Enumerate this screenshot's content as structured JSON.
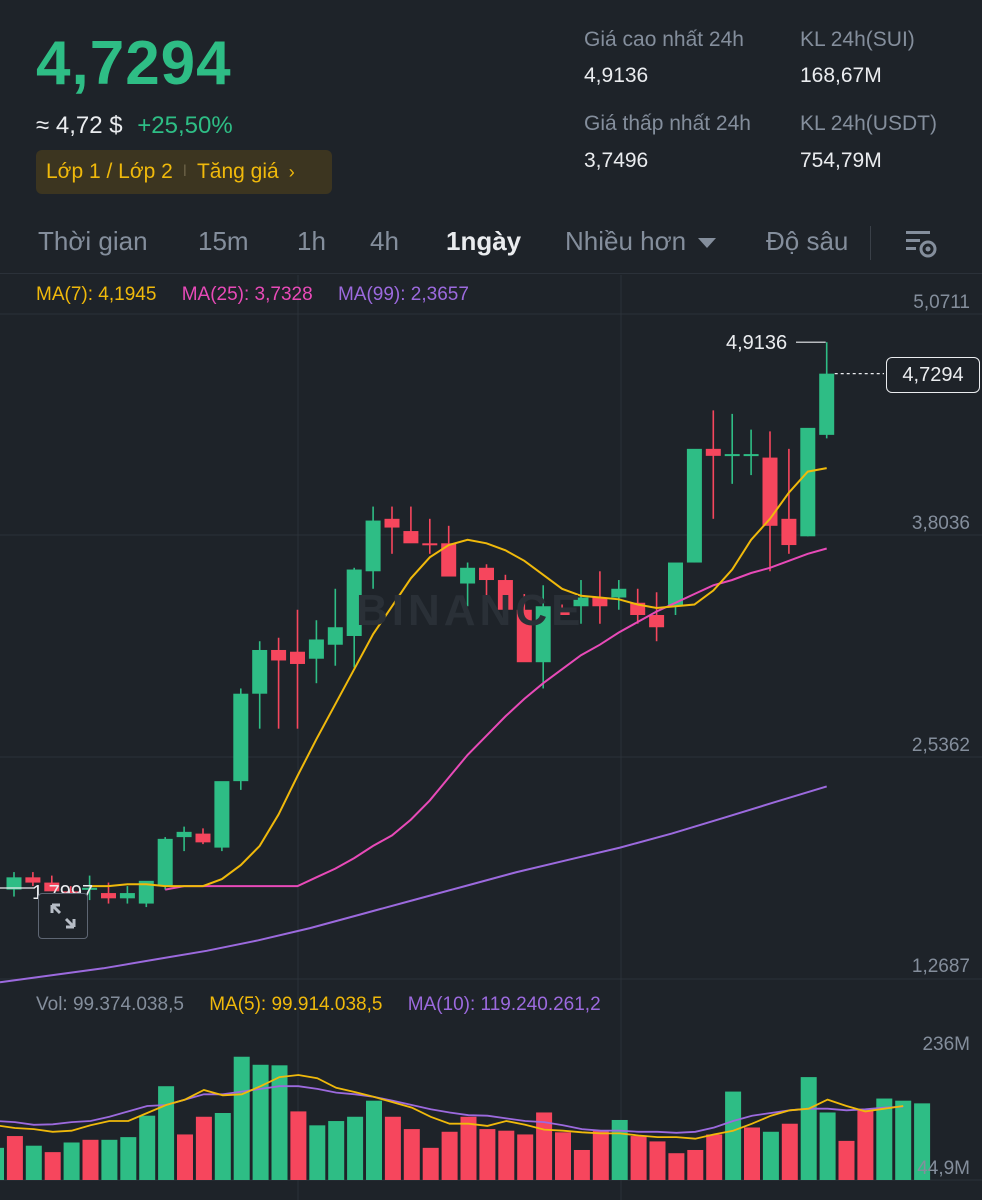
{
  "header": {
    "last_price": "4,7294",
    "usd_approx": "≈ 4,72 $",
    "change_pct": "+25,50%",
    "tag_layer": "Lớp 1 / Lớp 2",
    "tag_trend": "Tăng giá",
    "stats": {
      "high_label": "Giá cao nhất 24h",
      "high_value": "4,9136",
      "low_label": "Giá thấp nhất 24h",
      "low_value": "3,7496",
      "vol_base_label": "KL 24h(SUI)",
      "vol_base_value": "168,67M",
      "vol_quote_label": "KL 24h(USDT)",
      "vol_quote_value": "754,79M"
    }
  },
  "tabs": {
    "time": "Thời gian",
    "m15": "15m",
    "h1": "1h",
    "h4": "4h",
    "d1": "1ngày",
    "more": "Nhiều hơn",
    "depth": "Độ sâu"
  },
  "ma_legend": {
    "ma7": "MA(7): 4,1945",
    "ma25": "MA(25): 3,7328",
    "ma99": "MA(99): 2,3657"
  },
  "vol_legend": {
    "vol": "Vol: 99.374.038,5",
    "ma5": "MA(5): 99.914.038,5",
    "ma10": "MA(10): 119.240.261,2"
  },
  "price_axis": {
    "p1": "5,0711",
    "p2": "3,8036",
    "p3": "2,5362",
    "p4": "1,2687"
  },
  "volume_axis": {
    "v1": "236M",
    "v2": "44,9M"
  },
  "annotations": {
    "high_marker": "4,9136",
    "low_marker": "1,7997",
    "current_price_tag": "4,7294"
  },
  "watermark": "BINANCE",
  "colors": {
    "up": "#2ebd85",
    "down": "#f6465d",
    "ma7": "#f0b90b",
    "ma25": "#e84ab8",
    "ma99": "#9c6ade",
    "accent": "#f0b90b"
  },
  "chart_data": {
    "type": "candlestick",
    "interval": "1ngày",
    "price_axis_ticks": [
      5.0711,
      3.8036,
      2.5362,
      1.2687
    ],
    "volume_axis_ticks_M": [
      236,
      44.9
    ],
    "candles_ohlc": [
      [
        1.78,
        1.88,
        1.74,
        1.85
      ],
      [
        1.85,
        1.88,
        1.8,
        1.82
      ],
      [
        1.82,
        1.86,
        1.78,
        1.77
      ],
      [
        1.77,
        1.8,
        1.72,
        1.76
      ],
      [
        1.78,
        1.86,
        1.72,
        1.79
      ],
      [
        1.76,
        1.82,
        1.7,
        1.73
      ],
      [
        1.73,
        1.8,
        1.7,
        1.76
      ],
      [
        1.7,
        1.8,
        1.68,
        1.83
      ],
      [
        1.8,
        2.08,
        1.78,
        2.07
      ],
      [
        2.08,
        2.14,
        2.0,
        2.11
      ],
      [
        2.1,
        2.13,
        2.04,
        2.05
      ],
      [
        2.02,
        2.38,
        2.0,
        2.4
      ],
      [
        2.4,
        2.93,
        2.35,
        2.9
      ],
      [
        2.9,
        3.2,
        2.7,
        3.15
      ],
      [
        3.15,
        3.22,
        2.7,
        3.09
      ],
      [
        3.14,
        3.38,
        2.7,
        3.07
      ],
      [
        3.1,
        3.32,
        2.96,
        3.21
      ],
      [
        3.18,
        3.5,
        3.06,
        3.28
      ],
      [
        3.23,
        3.62,
        3.05,
        3.61
      ],
      [
        3.6,
        3.97,
        3.5,
        3.89
      ],
      [
        3.9,
        3.97,
        3.7,
        3.85
      ],
      [
        3.83,
        3.97,
        3.82,
        3.76
      ],
      [
        3.76,
        3.9,
        3.7,
        3.75
      ],
      [
        3.76,
        3.86,
        3.66,
        3.57
      ],
      [
        3.53,
        3.65,
        3.4,
        3.62
      ],
      [
        3.62,
        3.64,
        3.4,
        3.55
      ],
      [
        3.55,
        3.58,
        3.35,
        3.38
      ],
      [
        3.38,
        3.47,
        3.14,
        3.08
      ],
      [
        3.08,
        3.52,
        2.93,
        3.4
      ],
      [
        3.38,
        3.41,
        3.35,
        3.35
      ],
      [
        3.4,
        3.55,
        3.3,
        3.45
      ],
      [
        3.45,
        3.6,
        3.3,
        3.4
      ],
      [
        3.45,
        3.55,
        3.38,
        3.5
      ],
      [
        3.42,
        3.5,
        3.3,
        3.35
      ],
      [
        3.35,
        3.48,
        3.2,
        3.28
      ],
      [
        3.4,
        3.6,
        3.35,
        3.65
      ],
      [
        3.65,
        4.18,
        3.65,
        4.3
      ],
      [
        4.3,
        4.52,
        3.9,
        4.26
      ],
      [
        4.27,
        4.5,
        4.1,
        4.27
      ],
      [
        4.26,
        4.41,
        4.15,
        4.27
      ],
      [
        4.25,
        4.4,
        3.6,
        3.86
      ],
      [
        3.9,
        4.3,
        3.7,
        3.75
      ],
      [
        3.8,
        4.4,
        3.8,
        4.42
      ],
      [
        4.38,
        4.91,
        4.36,
        4.73
      ]
    ],
    "ma7": [
      1.8,
      1.8,
      1.81,
      1.81,
      1.8,
      1.8,
      1.8,
      1.84,
      1.92,
      2.03,
      2.21,
      2.43,
      2.64,
      2.84,
      3.04,
      3.24,
      3.4,
      3.56,
      3.68,
      3.75,
      3.78,
      3.76,
      3.72,
      3.66,
      3.58,
      3.5,
      3.46,
      3.45,
      3.44,
      3.41,
      3.39,
      3.4,
      3.41,
      3.49,
      3.61,
      3.78,
      3.9,
      4.05,
      4.17,
      4.19
    ],
    "ma25": [
      1.78,
      1.8,
      1.8,
      1.8,
      1.8,
      1.8,
      1.8,
      1.8,
      1.85,
      1.9,
      1.96,
      2.03,
      2.09,
      2.18,
      2.29,
      2.42,
      2.55,
      2.66,
      2.77,
      2.87,
      2.96,
      3.04,
      3.12,
      3.18,
      3.25,
      3.31,
      3.37,
      3.42,
      3.47,
      3.52,
      3.55,
      3.59,
      3.62,
      3.66,
      3.7,
      3.73
    ],
    "ma99": [
      1.25,
      1.29,
      1.33,
      1.38,
      1.43,
      1.49,
      1.56,
      1.64,
      1.72,
      1.8,
      1.88,
      1.95,
      2.02,
      2.1,
      2.19,
      2.28,
      2.37
    ],
    "volume_M": [
      60,
      82,
      64,
      52,
      70,
      75,
      75,
      80,
      120,
      175,
      85,
      118,
      125,
      230,
      215,
      214,
      128,
      102,
      110,
      118,
      148,
      118,
      95,
      60,
      90,
      118,
      95,
      92,
      85,
      126,
      89,
      56,
      92,
      112,
      82,
      72,
      50,
      56,
      85,
      165,
      98,
      90,
      105,
      192,
      126,
      73,
      133,
      152,
      148,
      143
    ],
    "volume_up": [
      true,
      false,
      true,
      false,
      true,
      false,
      true,
      true,
      true,
      true,
      false,
      false,
      true,
      true,
      true,
      true,
      false,
      true,
      true,
      true,
      true,
      false,
      false,
      false,
      false,
      false,
      false,
      false,
      false,
      false,
      false,
      false,
      false,
      true,
      false,
      false,
      false,
      false,
      false,
      true,
      false,
      true,
      false,
      true,
      true,
      false,
      false,
      true,
      true,
      true
    ],
    "volume_ma5": [
      102,
      97,
      95,
      90,
      92,
      102,
      110,
      110,
      125,
      140,
      150,
      168,
      158,
      160,
      175,
      192,
      196,
      190,
      172,
      164,
      155,
      145,
      135,
      118,
      105,
      105,
      101,
      110,
      103,
      94,
      92,
      89,
      87,
      87,
      83,
      80,
      80,
      77,
      85,
      92,
      105,
      120,
      130,
      133,
      150,
      138,
      128,
      133,
      138
    ],
    "volume_ma10": [
      110,
      108,
      103,
      104,
      108,
      110,
      118,
      128,
      138,
      140,
      150,
      160,
      160,
      165,
      170,
      175,
      175,
      170,
      163,
      160,
      155,
      148,
      140,
      132,
      126,
      121,
      120,
      115,
      110,
      108,
      102,
      95,
      92,
      92,
      90,
      90,
      88,
      90,
      98,
      110,
      120,
      125,
      130,
      133,
      133,
      130,
      132,
      135,
      137
    ]
  }
}
